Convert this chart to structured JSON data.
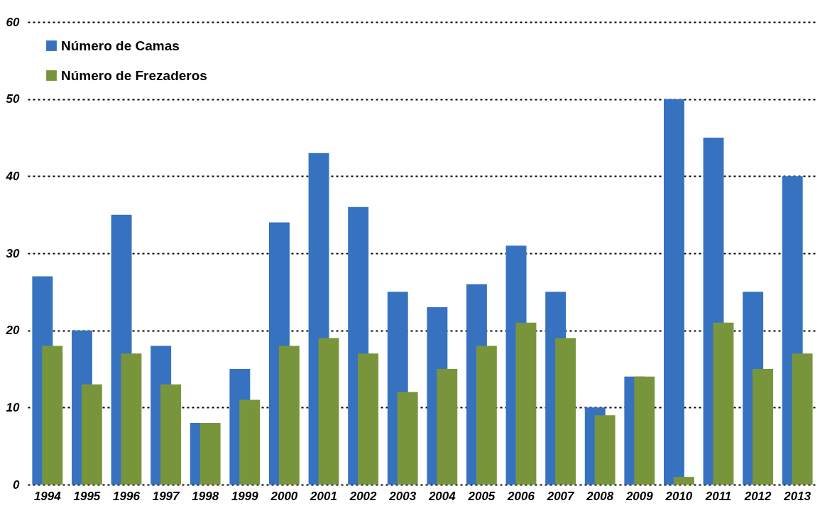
{
  "chart_data": {
    "type": "bar",
    "categories": [
      "1994",
      "1995",
      "1996",
      "1997",
      "1998",
      "1999",
      "2000",
      "2001",
      "2002",
      "2003",
      "2004",
      "2005",
      "2006",
      "2007",
      "2008",
      "2009",
      "2010",
      "2011",
      "2012",
      "2013"
    ],
    "series": [
      {
        "name": "Número de Camas",
        "color": "#3672bf",
        "values": [
          27,
          20,
          35,
          18,
          8,
          15,
          34,
          43,
          36,
          25,
          23,
          26,
          31,
          25,
          10,
          14,
          50,
          45,
          25,
          40
        ]
      },
      {
        "name": "Número de Frezaderos",
        "color": "#79953c",
        "values": [
          18,
          13,
          17,
          13,
          8,
          11,
          18,
          19,
          17,
          12,
          15,
          18,
          21,
          19,
          9,
          14,
          1,
          21,
          15,
          17
        ]
      }
    ],
    "ylim": [
      0,
      60
    ],
    "yticks": [
      0,
      10,
      20,
      30,
      40,
      50,
      60
    ],
    "grid": "y",
    "legend": "top left"
  }
}
